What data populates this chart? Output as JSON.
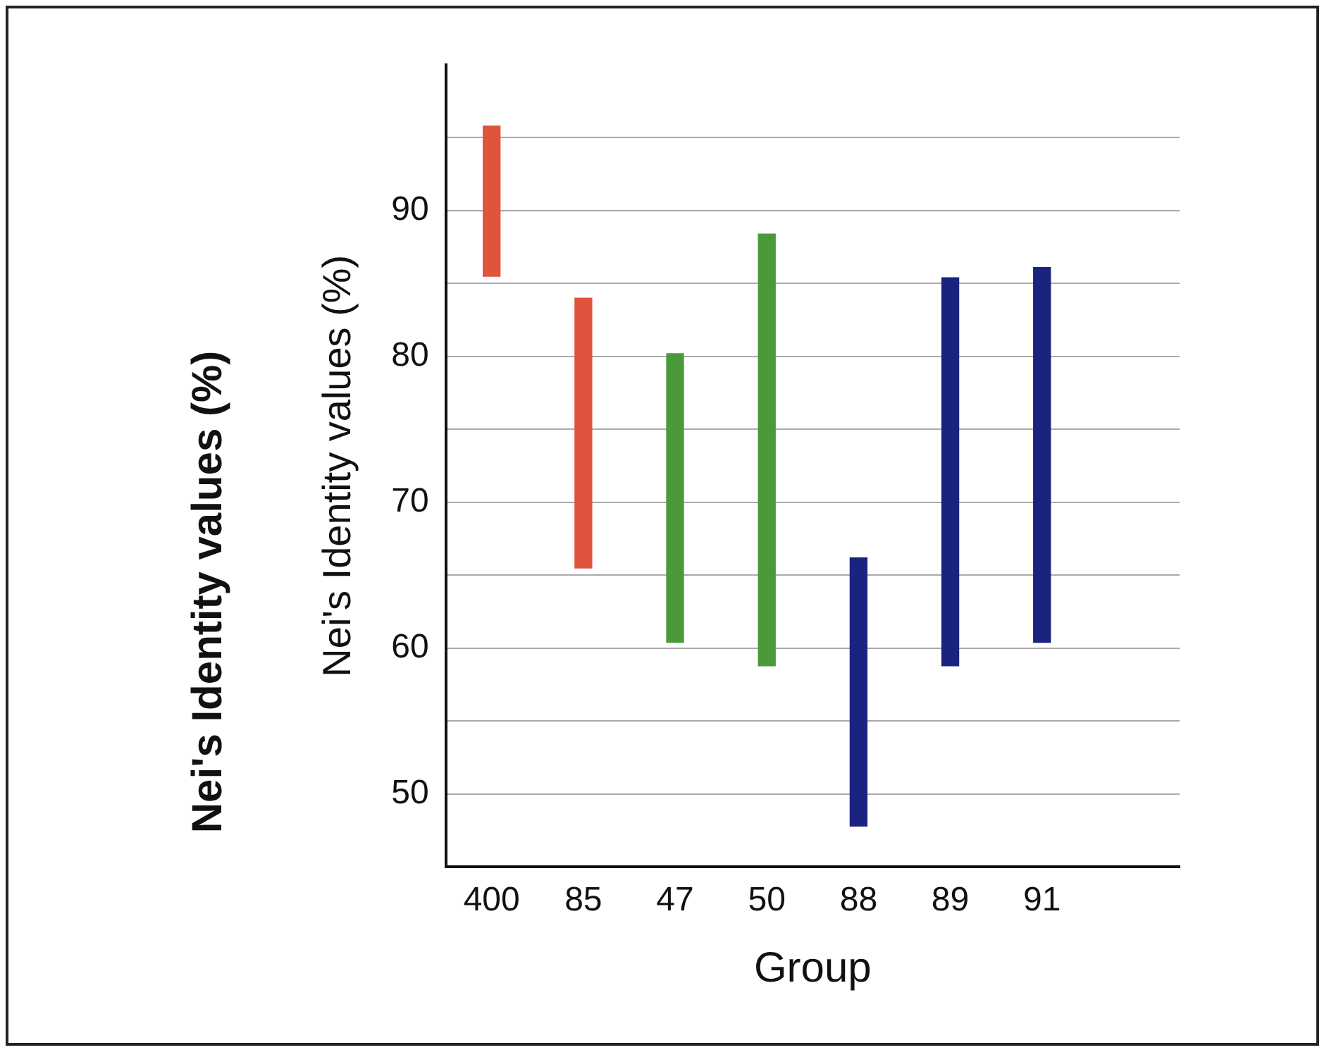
{
  "chart_data": {
    "type": "bar",
    "xlabel": "Group",
    "ylabel": "Nei's Identity values (%)",
    "annotations": [
      "Nei's Identity values (%)"
    ],
    "categories": [
      "400",
      "85",
      "47",
      "50",
      "88",
      "89",
      "91",
      null
    ],
    "base": [
      85.5,
      65.5,
      60.4,
      58.8,
      47.8,
      58.8,
      60.4,
      null
    ],
    "values": [
      10.3,
      18.5,
      19.8,
      29.6,
      18.4,
      26.6,
      25.7,
      null
    ],
    "colors": [
      "#e0533c",
      "#e0533c",
      "#4a9a3a",
      "#4a9a3a",
      "#1a237e",
      "#1a237e",
      "#1a237e",
      "#1a237e"
    ],
    "ylim": [
      45,
      100
    ],
    "yticks": [
      50,
      {
        "value": 55,
        "label": null
      },
      60,
      {
        "value": 65,
        "label": null
      },
      70,
      {
        "value": 75,
        "label": null
      },
      80,
      {
        "value": 85,
        "label": null
      },
      90,
      {
        "value": 95,
        "label": null
      }
    ],
    "grid": "y",
    "legend": false
  }
}
